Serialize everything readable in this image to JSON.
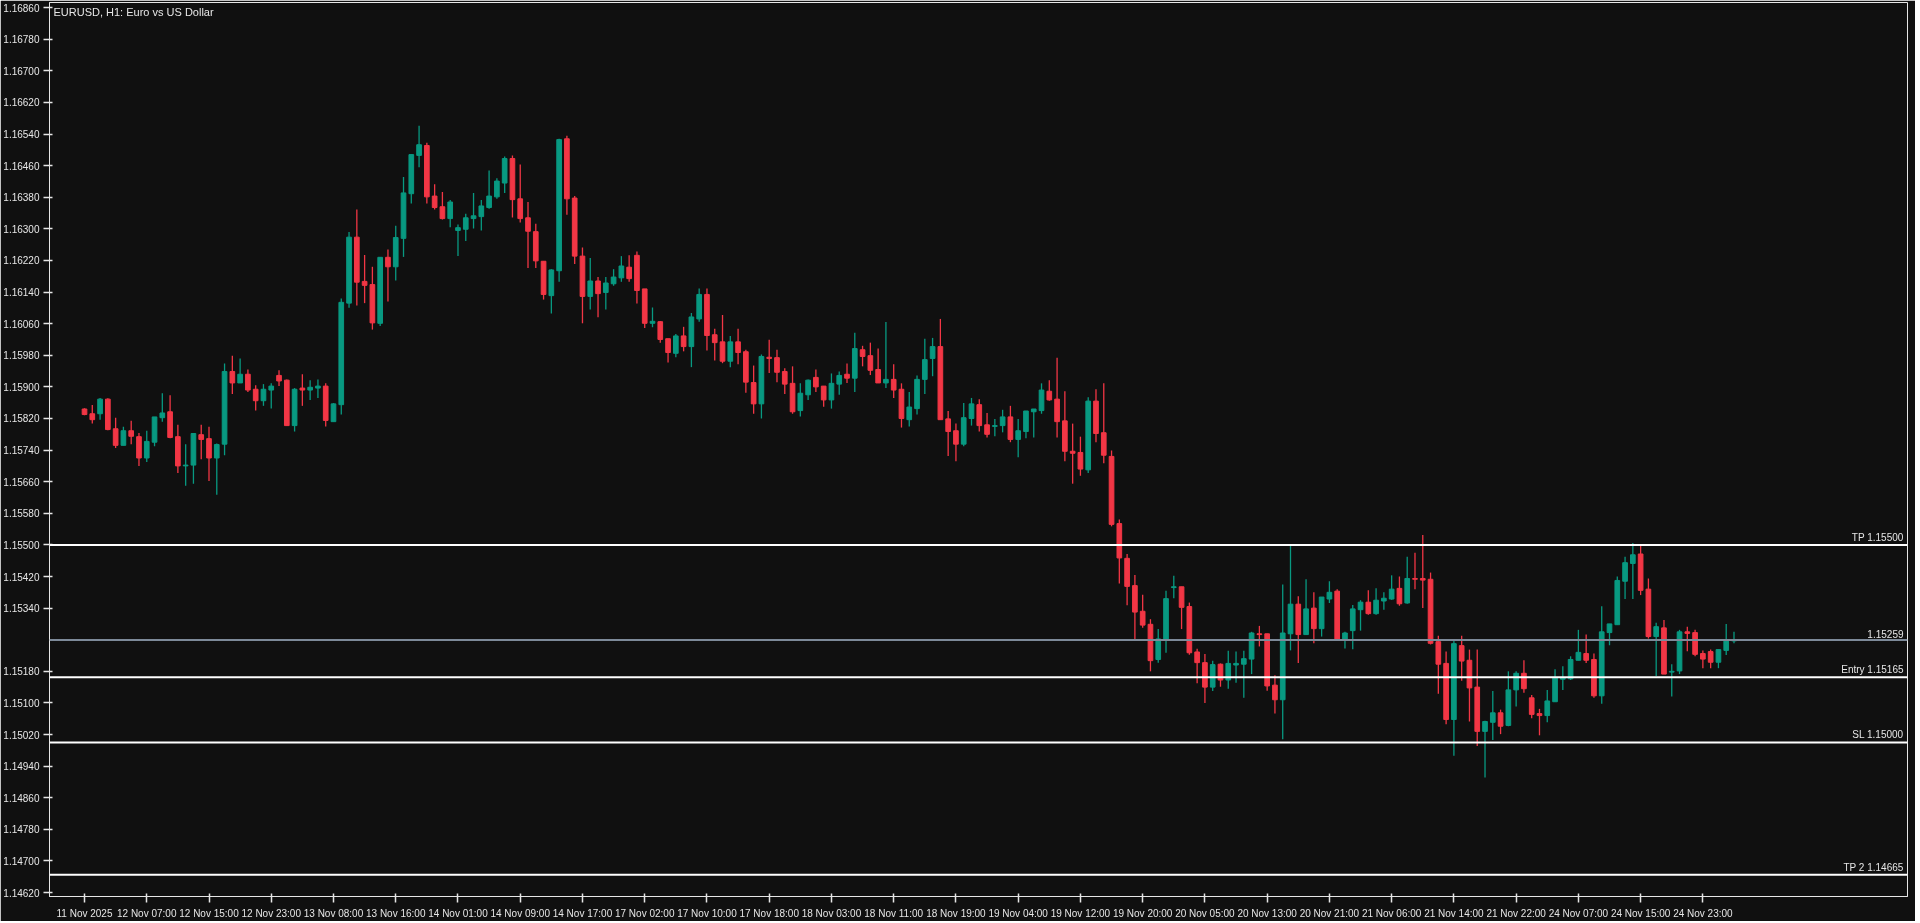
{
  "chart_data": {
    "type": "candlestick",
    "title": "EURUSD, H1:  Euro vs US Dollar",
    "colors": [
      "#f23645",
      "#f23645",
      "#089981",
      "#f23645",
      "#f23645",
      "#089981",
      "#f23645",
      "#f23645",
      "#089981",
      "#089981",
      "#089981",
      "#f23645",
      "#f23645",
      "#089981",
      "#089981",
      "#f23645",
      "#f23645",
      "#089981",
      "#089981",
      "#f23645",
      "#089981",
      "#f23645",
      "#f23645",
      "#089981",
      "#089981",
      "#f23645",
      "#f23645",
      "#089981",
      "#f23645",
      "#089981",
      "#089981",
      "#f23645",
      "#089981",
      "#089981",
      "#089981",
      "#f23645",
      "#f23645",
      "#f23645",
      "#089981",
      "#f23645",
      "#089981",
      "#089981",
      "#089981",
      "#089981",
      "#f23645",
      "#f23645",
      "#f23645",
      "#089981",
      "#089981",
      "#089981",
      "#089981",
      "#089981",
      "#089981",
      "#089981",
      "#089981",
      "#f23645",
      "#f23645",
      "#f23645",
      "#f23645",
      "#f23645",
      "#089981",
      "#089981",
      "#f23645",
      "#f23645",
      "#f23645",
      "#089981",
      "#f23645",
      "#089981",
      "#089981",
      "#089981",
      "#f23645",
      "#f23645",
      "#f23645",
      "#089981",
      "#f23645",
      "#f23645",
      "#089981",
      "#f23645",
      "#089981",
      "#089981",
      "#f23645",
      "#f23645",
      "#f23645",
      "#089981",
      "#f23645",
      "#f23645",
      "#f23645",
      "#089981",
      "#f23645",
      "#f23645",
      "#f23645",
      "#f23645",
      "#089981",
      "#089981",
      "#f23645",
      "#f23645",
      "#089981",
      "#089981",
      "#f23645",
      "#089981",
      "#f23645",
      "#f23645",
      "#f23645",
      "#089981",
      "#f23645",
      "#f23645",
      "#089981",
      "#089981",
      "#089981",
      "#089981",
      "#f23645",
      "#f23645",
      "#f23645",
      "#089981",
      "#089981",
      "#f23645",
      "#f23645",
      "#089981",
      "#089981",
      "#f23645",
      "#089981",
      "#089981",
      "#089981",
      "#089981",
      "#f23645",
      "#f23645",
      "#f23645",
      "#f23645",
      "#f23645",
      "#089981",
      "#f23645",
      "#f23645",
      "#f23645",
      "#f23645",
      "#f23645",
      "#f23645",
      "#f23645",
      "#f23645",
      "#089981",
      "#089981",
      "#089981",
      "#f23645",
      "#f23645",
      "#f23645",
      "#f23645",
      "#089981",
      "#f23645",
      "#089981",
      "#089981",
      "#089981",
      "#089981",
      "#f23645",
      "#f23645",
      "#f23645",
      "#089981",
      "#089981",
      "#f23645",
      "#089981",
      "#f23645",
      "#089981",
      "#089981",
      "#f23645",
      "#089981",
      "#089981",
      "#089981",
      "#f23645",
      "#089981",
      "#089981",
      "#089981",
      "#f23645",
      "#089981",
      "#f23645",
      "#f23645",
      "#f23645",
      "#f23645",
      "#f23645",
      "#089981",
      "#f23645",
      "#f23645",
      "#f23645",
      "#089981",
      "#089981",
      "#f23645",
      "#089981",
      "#089981",
      "#f23645",
      "#f23645",
      "#f23645",
      "#089981",
      "#089981",
      "#089981",
      "#089981",
      "#089981",
      "#f23645",
      "#f23645",
      "#089981",
      "#089981",
      "#089981",
      "#089981",
      "#089981",
      "#f23645",
      "#f23645",
      "#089981",
      "#f23645",
      "#089981",
      "#089981",
      "#f23645",
      "#f23645",
      "#f23645",
      "#f23645",
      "#089981",
      "#089981",
      "#089981"
    ],
    "categories": [
      "11 Nov 2025",
      null,
      null,
      null,
      null,
      null,
      null,
      null,
      "12 Nov 07:00",
      null,
      null,
      null,
      null,
      null,
      null,
      null,
      "12 Nov 15:00",
      null,
      null,
      null,
      null,
      null,
      null,
      null,
      "12 Nov 23:00",
      null,
      null,
      null,
      null,
      null,
      null,
      null,
      "13 Nov 08:00",
      null,
      null,
      null,
      null,
      null,
      null,
      null,
      "13 Nov 16:00",
      null,
      null,
      null,
      null,
      null,
      null,
      null,
      "14 Nov 01:00",
      null,
      null,
      null,
      null,
      null,
      null,
      null,
      "14 Nov 09:00",
      null,
      null,
      null,
      null,
      null,
      null,
      null,
      "14 Nov 17:00",
      null,
      null,
      null,
      null,
      null,
      null,
      null,
      "17 Nov 02:00",
      null,
      null,
      null,
      null,
      null,
      null,
      null,
      "17 Nov 10:00",
      null,
      null,
      null,
      null,
      null,
      null,
      null,
      "17 Nov 18:00",
      null,
      null,
      null,
      null,
      null,
      null,
      null,
      "18 Nov 03:00",
      null,
      null,
      null,
      null,
      null,
      null,
      null,
      "18 Nov 11:00",
      null,
      null,
      null,
      null,
      null,
      null,
      null,
      "18 Nov 19:00",
      null,
      null,
      null,
      null,
      null,
      null,
      null,
      "19 Nov 04:00",
      null,
      null,
      null,
      null,
      null,
      null,
      null,
      "19 Nov 12:00",
      null,
      null,
      null,
      null,
      null,
      null,
      null,
      "19 Nov 20:00",
      null,
      null,
      null,
      null,
      null,
      null,
      null,
      "20 Nov 05:00",
      null,
      null,
      null,
      null,
      null,
      null,
      null,
      "20 Nov 13:00",
      null,
      null,
      null,
      null,
      null,
      null,
      null,
      "20 Nov 21:00",
      null,
      null,
      null,
      null,
      null,
      null,
      null,
      "21 Nov 06:00",
      null,
      null,
      null,
      null,
      null,
      null,
      null,
      "21 Nov 14:00",
      null,
      null,
      null,
      null,
      null,
      null,
      null,
      "21 Nov 22:00",
      null,
      null,
      null,
      null,
      null,
      null,
      null,
      "24 Nov 07:00",
      null,
      null,
      null,
      null,
      null,
      null,
      null,
      "24 Nov 15:00",
      null,
      null,
      null,
      null,
      null,
      null,
      null,
      "24 Nov 23:00",
      null,
      null,
      null,
      null
    ],
    "ohlc": [
      [
        1.15844,
        1.15846,
        1.15828,
        1.1583
      ],
      [
        1.15832,
        1.15854,
        1.15807,
        1.15817
      ],
      [
        1.15832,
        1.15872,
        1.15817,
        1.15869
      ],
      [
        1.15869,
        1.15871,
        1.1579,
        1.15792
      ],
      [
        1.15794,
        1.15822,
        1.15745,
        1.15752
      ],
      [
        1.15752,
        1.15799,
        1.15752,
        1.15789
      ],
      [
        1.15789,
        1.15814,
        1.15755,
        1.15775
      ],
      [
        1.15774,
        1.15783,
        1.157,
        1.1572
      ],
      [
        1.1572,
        1.15789,
        1.1571,
        1.15762
      ],
      [
        1.1576,
        1.15824,
        1.1575,
        1.15824
      ],
      [
        1.15822,
        1.15884,
        1.15812,
        1.15834
      ],
      [
        1.15837,
        1.15879,
        1.1577,
        1.15772
      ],
      [
        1.15774,
        1.15804,
        1.15682,
        1.157
      ],
      [
        1.157,
        1.15755,
        1.1565,
        1.15702
      ],
      [
        1.15702,
        1.15782,
        1.15655,
        1.15782
      ],
      [
        1.15779,
        1.15804,
        1.15717,
        1.15767
      ],
      [
        1.15769,
        1.15799,
        1.15662,
        1.1572
      ],
      [
        1.1572,
        1.15757,
        1.15627,
        1.15754
      ],
      [
        1.15755,
        1.15959,
        1.15727,
        1.15939
      ],
      [
        1.15939,
        1.15979,
        1.15882,
        1.1591
      ],
      [
        1.1591,
        1.15972,
        1.1591,
        1.15932
      ],
      [
        1.15932,
        1.15944,
        1.15887,
        1.15892
      ],
      [
        1.15894,
        1.15904,
        1.1584,
        1.15865
      ],
      [
        1.15865,
        1.15907,
        1.15852,
        1.15894
      ],
      [
        1.15892,
        1.15909,
        1.15845,
        1.15902
      ],
      [
        1.15929,
        1.15942,
        1.15902,
        1.15915
      ],
      [
        1.15917,
        1.15919,
        1.15802,
        1.15802
      ],
      [
        1.15802,
        1.15897,
        1.15787,
        1.15894
      ],
      [
        1.15897,
        1.15932,
        1.15852,
        1.15892
      ],
      [
        1.15892,
        1.15917,
        1.15867,
        1.15899
      ],
      [
        1.15897,
        1.15919,
        1.15872,
        1.15902
      ],
      [
        1.15902,
        1.15909,
        1.158,
        1.15815
      ],
      [
        1.15812,
        1.15859,
        1.15812,
        1.15857
      ],
      [
        1.15855,
        1.16124,
        1.1583,
        1.16114
      ],
      [
        1.16112,
        1.16292,
        1.161,
        1.16279
      ],
      [
        1.16279,
        1.16349,
        1.16106,
        1.16165
      ],
      [
        1.16167,
        1.16234,
        1.16112,
        1.16157
      ],
      [
        1.16159,
        1.16204,
        1.16045,
        1.16062
      ],
      [
        1.16061,
        1.16228,
        1.16054,
        1.16228
      ],
      [
        1.16228,
        1.16248,
        1.16116,
        1.16204
      ],
      [
        1.16204,
        1.16308,
        1.16169,
        1.16278
      ],
      [
        1.16276,
        1.16431,
        1.16229,
        1.16391
      ],
      [
        1.16389,
        1.16488,
        1.16364,
        1.16488
      ],
      [
        1.16486,
        1.16561,
        1.16456,
        1.16513
      ],
      [
        1.16511,
        1.16518,
        1.16364,
        1.16381
      ],
      [
        1.16383,
        1.16413,
        1.16349,
        1.16354
      ],
      [
        1.16356,
        1.16393,
        1.16324,
        1.16326
      ],
      [
        1.16326,
        1.16373,
        1.16304,
        1.16368
      ],
      [
        1.16296,
        1.16311,
        1.16231,
        1.16303
      ],
      [
        1.16299,
        1.16338,
        1.16269,
        1.16328
      ],
      [
        1.16326,
        1.16391,
        1.16301,
        1.16333
      ],
      [
        1.16331,
        1.16373,
        1.16296,
        1.16358
      ],
      [
        1.16354,
        1.16448,
        1.16351,
        1.16383
      ],
      [
        1.16381,
        1.16428,
        1.16376,
        1.16421
      ],
      [
        1.16416,
        1.16483,
        1.16391,
        1.16478
      ],
      [
        1.16478,
        1.16486,
        1.16329,
        1.16374
      ],
      [
        1.16376,
        1.16463,
        1.16316,
        1.16326
      ],
      [
        1.16328,
        1.16368,
        1.16201,
        1.16294
      ],
      [
        1.16293,
        1.16313,
        1.16201,
        1.16219
      ],
      [
        1.16218,
        1.16218,
        1.16121,
        1.16134
      ],
      [
        1.16131,
        1.16198,
        1.16086,
        1.16196
      ],
      [
        1.16194,
        1.16528,
        1.16166,
        1.16526
      ],
      [
        1.16528,
        1.16536,
        1.16336,
        1.16376
      ],
      [
        1.16378,
        1.16383,
        1.16211,
        1.16231
      ],
      [
        1.16231,
        1.16253,
        1.16061,
        1.16129
      ],
      [
        1.16129,
        1.16226,
        1.16096,
        1.16168
      ],
      [
        1.16168,
        1.16178,
        1.16076,
        1.16136
      ],
      [
        1.16139,
        1.16178,
        1.16096,
        1.16163
      ],
      [
        1.16161,
        1.16198,
        1.16156,
        1.16178
      ],
      [
        1.16176,
        1.16231,
        1.16166,
        1.16206
      ],
      [
        1.16203,
        1.16233,
        1.16166,
        1.16174
      ],
      [
        1.16233,
        1.16243,
        1.16111,
        1.16144
      ],
      [
        1.16148,
        1.16148,
        1.16049,
        1.16061
      ],
      [
        1.16061,
        1.16101,
        1.16051,
        1.16066
      ],
      [
        1.16065,
        1.16067,
        1.16012,
        1.1602
      ],
      [
        1.16022,
        1.16022,
        1.15962,
        1.15987
      ],
      [
        1.15985,
        1.16034,
        1.15975,
        1.16029
      ],
      [
        1.16029,
        1.16052,
        1.1599,
        1.16002
      ],
      [
        1.16002,
        1.16087,
        1.1595,
        1.16077
      ],
      [
        1.16072,
        1.16149,
        1.16065,
        1.16134
      ],
      [
        1.16134,
        1.16149,
        1.15992,
        1.1603
      ],
      [
        1.16032,
        1.16047,
        1.15967,
        1.16012
      ],
      [
        1.16014,
        1.16082,
        1.1596,
        1.15965
      ],
      [
        1.15965,
        1.16029,
        1.1595,
        1.16014
      ],
      [
        1.16014,
        1.16047,
        1.15957,
        1.15987
      ],
      [
        1.15989,
        1.15994,
        1.15885,
        1.15912
      ],
      [
        1.15911,
        1.15954,
        1.15832,
        1.15857
      ],
      [
        1.15857,
        1.15982,
        1.1582,
        1.15977
      ],
      [
        1.15975,
        1.16019,
        1.15935,
        1.15972
      ],
      [
        1.15974,
        1.15994,
        1.15912,
        1.15937
      ],
      [
        1.15939,
        1.15947,
        1.15882,
        1.15907
      ],
      [
        1.15909,
        1.15952,
        1.15832,
        1.15837
      ],
      [
        1.1584,
        1.15909,
        1.15825,
        1.15884
      ],
      [
        1.1588,
        1.15919,
        1.15867,
        1.15917
      ],
      [
        1.15924,
        1.15944,
        1.15887,
        1.159
      ],
      [
        1.15902,
        1.15902,
        1.1585,
        1.15867
      ],
      [
        1.15867,
        1.15934,
        1.15845,
        1.15909
      ],
      [
        1.15907,
        1.15939,
        1.1588,
        1.15929
      ],
      [
        1.15932,
        1.15959,
        1.1591,
        1.15922
      ],
      [
        1.15922,
        1.16037,
        1.15887,
        1.15997
      ],
      [
        1.15994,
        1.16004,
        1.15952,
        1.15977
      ],
      [
        1.15979,
        1.16012,
        1.1593,
        1.15942
      ],
      [
        1.15944,
        1.15997,
        1.1591,
        1.1591
      ],
      [
        1.1591,
        1.16064,
        1.15897,
        1.15919
      ],
      [
        1.15919,
        1.15957,
        1.15872,
        1.15892
      ],
      [
        1.15894,
        1.15909,
        1.15797,
        1.1582
      ],
      [
        1.15817,
        1.15887,
        1.158,
        1.15849
      ],
      [
        1.15845,
        1.15929,
        1.1583,
        1.15919
      ],
      [
        1.15919,
        1.16022,
        1.15882,
        1.15969
      ],
      [
        1.15972,
        1.16024,
        1.15927,
        1.16002
      ],
      [
        1.16002,
        1.16072,
        1.15817,
        1.15817
      ],
      [
        1.15819,
        1.15839,
        1.15725,
        1.15787
      ],
      [
        1.15789,
        1.15807,
        1.15712,
        1.15755
      ],
      [
        1.15755,
        1.15859,
        1.1575,
        1.15822
      ],
      [
        1.1582,
        1.15872,
        1.15802,
        1.15857
      ],
      [
        1.15855,
        1.15869,
        1.15787,
        1.15802
      ],
      [
        1.15804,
        1.15834,
        1.15772,
        1.1578
      ],
      [
        1.158,
        1.15819,
        1.15775,
        1.15802
      ],
      [
        1.15802,
        1.15842,
        1.15785,
        1.15824
      ],
      [
        1.15824,
        1.15852,
        1.1576,
        1.15767
      ],
      [
        1.15767,
        1.15819,
        1.15722,
        1.15789
      ],
      [
        1.15787,
        1.15839,
        1.1577,
        1.15839
      ],
      [
        1.15837,
        1.15844,
        1.15772,
        1.15844
      ],
      [
        1.1584,
        1.15909,
        1.15832,
        1.15892
      ],
      [
        1.15889,
        1.15917,
        1.15865,
        1.15867
      ],
      [
        1.15869,
        1.15974,
        1.15772,
        1.15812
      ],
      [
        1.15814,
        1.15889,
        1.15712,
        1.15737
      ],
      [
        1.15737,
        1.15807,
        1.15655,
        1.15732
      ],
      [
        1.15734,
        1.15774,
        1.15675,
        1.15692
      ],
      [
        1.1569,
        1.15874,
        1.15682,
        1.15864
      ],
      [
        1.15864,
        1.15894,
        1.1576,
        1.15782
      ],
      [
        1.15784,
        1.15909,
        1.15707,
        1.15727
      ],
      [
        1.15724,
        1.15739,
        1.15547,
        1.15552
      ],
      [
        1.15554,
        1.15564,
        1.15402,
        1.15467
      ],
      [
        1.15466,
        1.15477,
        1.15347,
        1.15395
      ],
      [
        1.15397,
        1.15424,
        1.15257,
        1.1533
      ],
      [
        1.15332,
        1.15374,
        1.1529,
        1.15297
      ],
      [
        1.15299,
        1.15312,
        1.1518,
        1.15207
      ],
      [
        1.1521,
        1.15287,
        1.15202,
        1.15262
      ],
      [
        1.15258,
        1.15384,
        1.15227,
        1.15364
      ],
      [
        1.15392,
        1.15422,
        1.15365,
        1.15394
      ],
      [
        1.15394,
        1.15394,
        1.15287,
        1.15342
      ],
      [
        1.15344,
        1.15354,
        1.15222,
        1.15227
      ],
      [
        1.15229,
        1.15237,
        1.1515,
        1.15202
      ],
      [
        1.15202,
        1.15224,
        1.151,
        1.1514
      ],
      [
        1.1514,
        1.15207,
        1.1513,
        1.15197
      ],
      [
        1.15198,
        1.152,
        1.15141,
        1.15158
      ],
      [
        1.15158,
        1.15232,
        1.15136,
        1.152
      ],
      [
        1.15196,
        1.1523,
        1.15151,
        1.152
      ],
      [
        1.15198,
        1.15232,
        1.15113,
        1.15212
      ],
      [
        1.15211,
        1.1528,
        1.15173,
        1.15277
      ],
      [
        1.15275,
        1.15295,
        1.15243,
        1.15273
      ],
      [
        1.15275,
        1.15275,
        1.15131,
        1.15143
      ],
      [
        1.15145,
        1.1517,
        1.15073,
        1.15108
      ],
      [
        1.15108,
        1.154,
        1.15008,
        1.15277
      ],
      [
        1.15275,
        1.15498,
        1.15233,
        1.1535
      ],
      [
        1.1535,
        1.1537,
        1.15201,
        1.15273
      ],
      [
        1.15273,
        1.15413,
        1.15273,
        1.15338
      ],
      [
        1.1534,
        1.1538,
        1.15251,
        1.15288
      ],
      [
        1.15288,
        1.15368,
        1.15268,
        1.15368
      ],
      [
        1.15363,
        1.15408,
        1.15353,
        1.1538
      ],
      [
        1.15383,
        1.15388,
        1.15258,
        1.15258
      ],
      [
        1.15258,
        1.1528,
        1.15238,
        1.15277
      ],
      [
        1.15283,
        1.15348,
        1.15236,
        1.15338
      ],
      [
        1.15336,
        1.1536,
        1.15283,
        1.15355
      ],
      [
        1.15355,
        1.15385,
        1.15323,
        1.15326
      ],
      [
        1.15326,
        1.1539,
        1.15323,
        1.1536
      ],
      [
        1.15358,
        1.1538,
        1.15336,
        1.15365
      ],
      [
        1.15363,
        1.15423,
        1.15361,
        1.15388
      ],
      [
        1.1539,
        1.1542,
        1.15346,
        1.15351
      ],
      [
        1.15353,
        1.1547,
        1.15351,
        1.15415
      ],
      [
        1.15415,
        1.1548,
        1.15388,
        1.15413
      ],
      [
        1.15415,
        1.15525,
        1.1534,
        1.15411
      ],
      [
        1.15413,
        1.1543,
        1.15248,
        1.15251
      ],
      [
        1.15255,
        1.1527,
        1.15123,
        1.15198
      ],
      [
        1.152,
        1.1523,
        1.15046,
        1.15058
      ],
      [
        1.15058,
        1.1526,
        1.14966,
        1.1525
      ],
      [
        1.15245,
        1.1527,
        1.15156,
        1.15206
      ],
      [
        1.15208,
        1.15235,
        1.15053,
        1.15138
      ],
      [
        1.1514,
        1.15235,
        1.14991,
        1.15028
      ],
      [
        1.15028,
        1.15055,
        1.14911,
        1.15053
      ],
      [
        1.15051,
        1.1513,
        1.15006,
        1.15075
      ],
      [
        1.15075,
        1.15083,
        1.15021,
        1.15041
      ],
      [
        1.15043,
        1.1518,
        1.15041,
        1.15133
      ],
      [
        1.15133,
        1.1518,
        1.15091,
        1.15175
      ],
      [
        1.15175,
        1.15208,
        1.15126,
        1.15136
      ],
      [
        1.15113,
        1.1512,
        1.15061,
        1.15071
      ],
      [
        1.15073,
        1.15085,
        1.15018,
        1.15068
      ],
      [
        1.15068,
        1.15133,
        1.15051,
        1.15105
      ],
      [
        1.15103,
        1.15185,
        1.15103,
        1.15163
      ],
      [
        1.1516,
        1.15193,
        1.15133,
        1.15163
      ],
      [
        1.15161,
        1.15218,
        1.15158,
        1.1521
      ],
      [
        1.15208,
        1.15285,
        1.15208,
        1.15228
      ],
      [
        1.15225,
        1.15273,
        1.15201,
        1.15208
      ],
      [
        1.1521,
        1.15225,
        1.15113,
        1.15118
      ],
      [
        1.15118,
        1.15345,
        1.15098,
        1.1528
      ],
      [
        1.15278,
        1.153,
        1.15246,
        1.153
      ],
      [
        1.15298,
        1.1542,
        1.15298,
        1.1541
      ],
      [
        1.15408,
        1.1547,
        1.15363,
        1.15455
      ],
      [
        1.15453,
        1.15505,
        1.15363,
        1.15475
      ],
      [
        1.15477,
        1.15498,
        1.15373,
        1.15385
      ],
      [
        1.15388,
        1.15415,
        1.15263,
        1.15268
      ],
      [
        1.15268,
        1.15303,
        1.15168,
        1.15293
      ],
      [
        1.1529,
        1.1531,
        1.15173,
        1.15173
      ],
      [
        1.15178,
        1.15198,
        1.15116,
        1.1518
      ],
      [
        1.15181,
        1.15285,
        1.15173,
        1.1528
      ],
      [
        1.1528,
        1.15293,
        1.15231,
        1.15276
      ],
      [
        1.15278,
        1.15285,
        1.15218,
        1.15223
      ],
      [
        1.15225,
        1.15233,
        1.15188,
        1.15211
      ],
      [
        1.1523,
        1.15235,
        1.15188,
        1.15203
      ],
      [
        1.15203,
        1.15235,
        1.15188,
        1.15235
      ],
      [
        1.15233,
        1.153,
        1.15221,
        1.1526
      ],
      [
        1.15257,
        1.1528,
        1.15251,
        1.15259
      ]
    ],
    "ylim": [
      1.1461,
      1.16873
    ],
    "yticks": [
      {
        "value": 1.1462,
        "label": "1.14620"
      },
      {
        "value": 1.147,
        "label": "1.14700"
      },
      {
        "value": 1.1478,
        "label": "1.14780"
      },
      {
        "value": 1.1486,
        "label": "1.14860"
      },
      {
        "value": 1.1494,
        "label": "1.14940"
      },
      {
        "value": 1.1502,
        "label": "1.15020"
      },
      {
        "value": 1.151,
        "label": "1.15100"
      },
      {
        "value": 1.1518,
        "label": "1.15180"
      },
      {
        "value": 1.1534,
        "label": "1.15340"
      },
      {
        "value": 1.1542,
        "label": "1.15420"
      },
      {
        "value": 1.155,
        "label": "1.15500"
      },
      {
        "value": 1.1558,
        "label": "1.15580"
      },
      {
        "value": 1.1566,
        "label": "1.15660"
      },
      {
        "value": 1.1574,
        "label": "1.15740"
      },
      {
        "value": 1.1582,
        "label": "1.15820"
      },
      {
        "value": 1.159,
        "label": "1.15900"
      },
      {
        "value": 1.1598,
        "label": "1.15980"
      },
      {
        "value": 1.1606,
        "label": "1.16060"
      },
      {
        "value": 1.1614,
        "label": "1.16140"
      },
      {
        "value": 1.1622,
        "label": "1.16220"
      },
      {
        "value": 1.163,
        "label": "1.16300"
      },
      {
        "value": 1.1638,
        "label": "1.16380"
      },
      {
        "value": 1.1646,
        "label": "1.16460"
      },
      {
        "value": 1.1654,
        "label": "1.16540"
      },
      {
        "value": 1.1662,
        "label": "1.16620"
      },
      {
        "value": 1.167,
        "label": "1.16700"
      },
      {
        "value": 1.1678,
        "label": "1.16780"
      },
      {
        "value": 1.1686,
        "label": "1.16860"
      }
    ],
    "ref_lines": [
      {
        "axis": "y",
        "value": 1.155,
        "label": "TP 1.15500",
        "color": "#ffffff",
        "line_style": "solid"
      },
      {
        "axis": "y",
        "value": 1.15165,
        "label": "Entry 1.15165",
        "color": "#ffffff",
        "line_style": "solid"
      },
      {
        "axis": "y",
        "value": 1.15,
        "label": "SL 1.15000",
        "color": "#ffffff",
        "line_style": "solid"
      },
      {
        "axis": "y",
        "value": 1.14665,
        "label": "TP 2 1.14665",
        "color": "#ffffff",
        "line_style": "solid"
      },
      {
        "axis": "y",
        "value": 1.15259,
        "label": "1.15259",
        "color": "#7d8a99",
        "line_style": "solid"
      }
    ]
  }
}
